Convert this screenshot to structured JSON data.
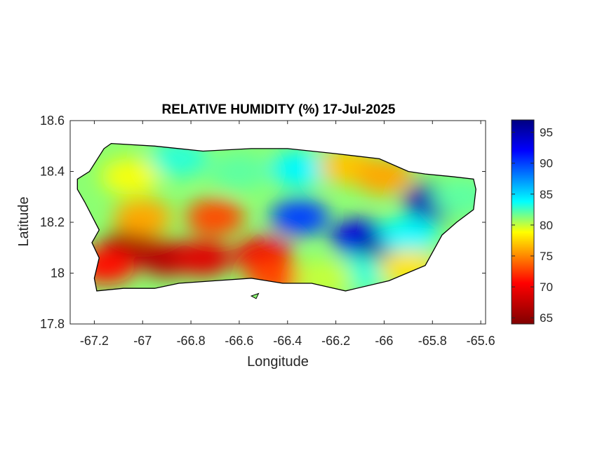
{
  "title": "RELATIVE HUMIDITY (%) 17-Jul-2025",
  "map": {
    "region": "Puerto Rico",
    "variable": "relative humidity",
    "x_range": [
      -67.3,
      -65.58
    ],
    "y_range": [
      17.8,
      18.6
    ],
    "x_ticks": [
      "-67.2",
      "-67",
      "-66.8",
      "-66.6",
      "-66.4",
      "-66.2",
      "-66",
      "-65.8",
      "-65.6"
    ],
    "x_tick_values": [
      -67.2,
      -67.0,
      -66.8,
      -66.6,
      -66.4,
      -66.2,
      -66.0,
      -65.8,
      -65.6
    ],
    "y_ticks": [
      "18.6",
      "18.4",
      "18.2",
      "18",
      "17.8"
    ],
    "y_tick_values": [
      18.6,
      18.4,
      18.2,
      18.0,
      17.8
    ],
    "xlabel": "Longitude",
    "ylabel": "Latitude",
    "outline_lonlat": [
      [
        -67.27,
        18.37
      ],
      [
        -67.22,
        18.4
      ],
      [
        -67.16,
        18.49
      ],
      [
        -67.13,
        18.51
      ],
      [
        -66.95,
        18.5
      ],
      [
        -66.75,
        18.48
      ],
      [
        -66.55,
        18.49
      ],
      [
        -66.4,
        18.49
      ],
      [
        -66.2,
        18.47
      ],
      [
        -66.02,
        18.45
      ],
      [
        -65.9,
        18.4
      ],
      [
        -65.83,
        18.39
      ],
      [
        -65.72,
        18.38
      ],
      [
        -65.63,
        18.37
      ],
      [
        -65.62,
        18.33
      ],
      [
        -65.63,
        18.25
      ],
      [
        -65.7,
        18.2
      ],
      [
        -65.76,
        18.15
      ],
      [
        -65.83,
        18.03
      ],
      [
        -65.98,
        17.97
      ],
      [
        -66.16,
        17.93
      ],
      [
        -66.3,
        17.96
      ],
      [
        -66.42,
        17.96
      ],
      [
        -66.55,
        17.98
      ],
      [
        -66.7,
        17.97
      ],
      [
        -66.85,
        17.96
      ],
      [
        -66.95,
        17.94
      ],
      [
        -67.08,
        17.94
      ],
      [
        -67.19,
        17.93
      ],
      [
        -67.2,
        17.98
      ],
      [
        -67.18,
        18.06
      ],
      [
        -67.21,
        18.12
      ],
      [
        -67.18,
        18.17
      ],
      [
        -67.24,
        18.28
      ],
      [
        -67.27,
        18.33
      ]
    ],
    "islets_lonlat": [
      [
        [
          -66.55,
          17.91
        ],
        [
          -66.52,
          17.92
        ],
        [
          -66.53,
          17.9
        ]
      ]
    ],
    "fields": [
      {
        "lon": -67.05,
        "lat": 18.1,
        "value": 65
      },
      {
        "lon": -66.9,
        "lat": 18.06,
        "value": 67
      },
      {
        "lon": -67.15,
        "lat": 18.03,
        "value": 71
      },
      {
        "lon": -66.75,
        "lat": 18.06,
        "value": 69
      },
      {
        "lon": -66.5,
        "lat": 18.07,
        "value": 70
      },
      {
        "lon": -66.45,
        "lat": 17.98,
        "value": 73
      },
      {
        "lon": -66.7,
        "lat": 18.22,
        "value": 73
      },
      {
        "lon": -67.0,
        "lat": 18.22,
        "value": 76
      },
      {
        "lon": -67.05,
        "lat": 18.38,
        "value": 79
      },
      {
        "lon": -66.85,
        "lat": 18.45,
        "value": 83
      },
      {
        "lon": -66.6,
        "lat": 18.4,
        "value": 82
      },
      {
        "lon": -66.35,
        "lat": 18.41,
        "value": 84
      },
      {
        "lon": -66.15,
        "lat": 18.42,
        "value": 77
      },
      {
        "lon": -66.0,
        "lat": 18.38,
        "value": 76
      },
      {
        "lon": -65.8,
        "lat": 18.28,
        "value": 95
      },
      {
        "lon": -65.68,
        "lat": 18.3,
        "value": 82
      },
      {
        "lon": -66.35,
        "lat": 18.22,
        "value": 90
      },
      {
        "lon": -66.1,
        "lat": 18.14,
        "value": 93
      },
      {
        "lon": -66.0,
        "lat": 18.1,
        "value": 96
      },
      {
        "lon": -65.9,
        "lat": 18.15,
        "value": 84
      },
      {
        "lon": -66.1,
        "lat": 18.0,
        "value": 83
      },
      {
        "lon": -65.9,
        "lat": 18.02,
        "value": 78
      },
      {
        "lon": -66.25,
        "lat": 17.98,
        "value": 80
      }
    ]
  },
  "colorbar": {
    "ticks": [
      "95",
      "90",
      "85",
      "80",
      "75",
      "70",
      "65"
    ],
    "tick_values": [
      95,
      90,
      85,
      80,
      75,
      70,
      65
    ],
    "range": [
      64,
      97
    ],
    "colormap": "jet",
    "stops": [
      "#800000",
      "#ff0000",
      "#ffff00",
      "#00ffff",
      "#0000ff",
      "#000080"
    ]
  }
}
